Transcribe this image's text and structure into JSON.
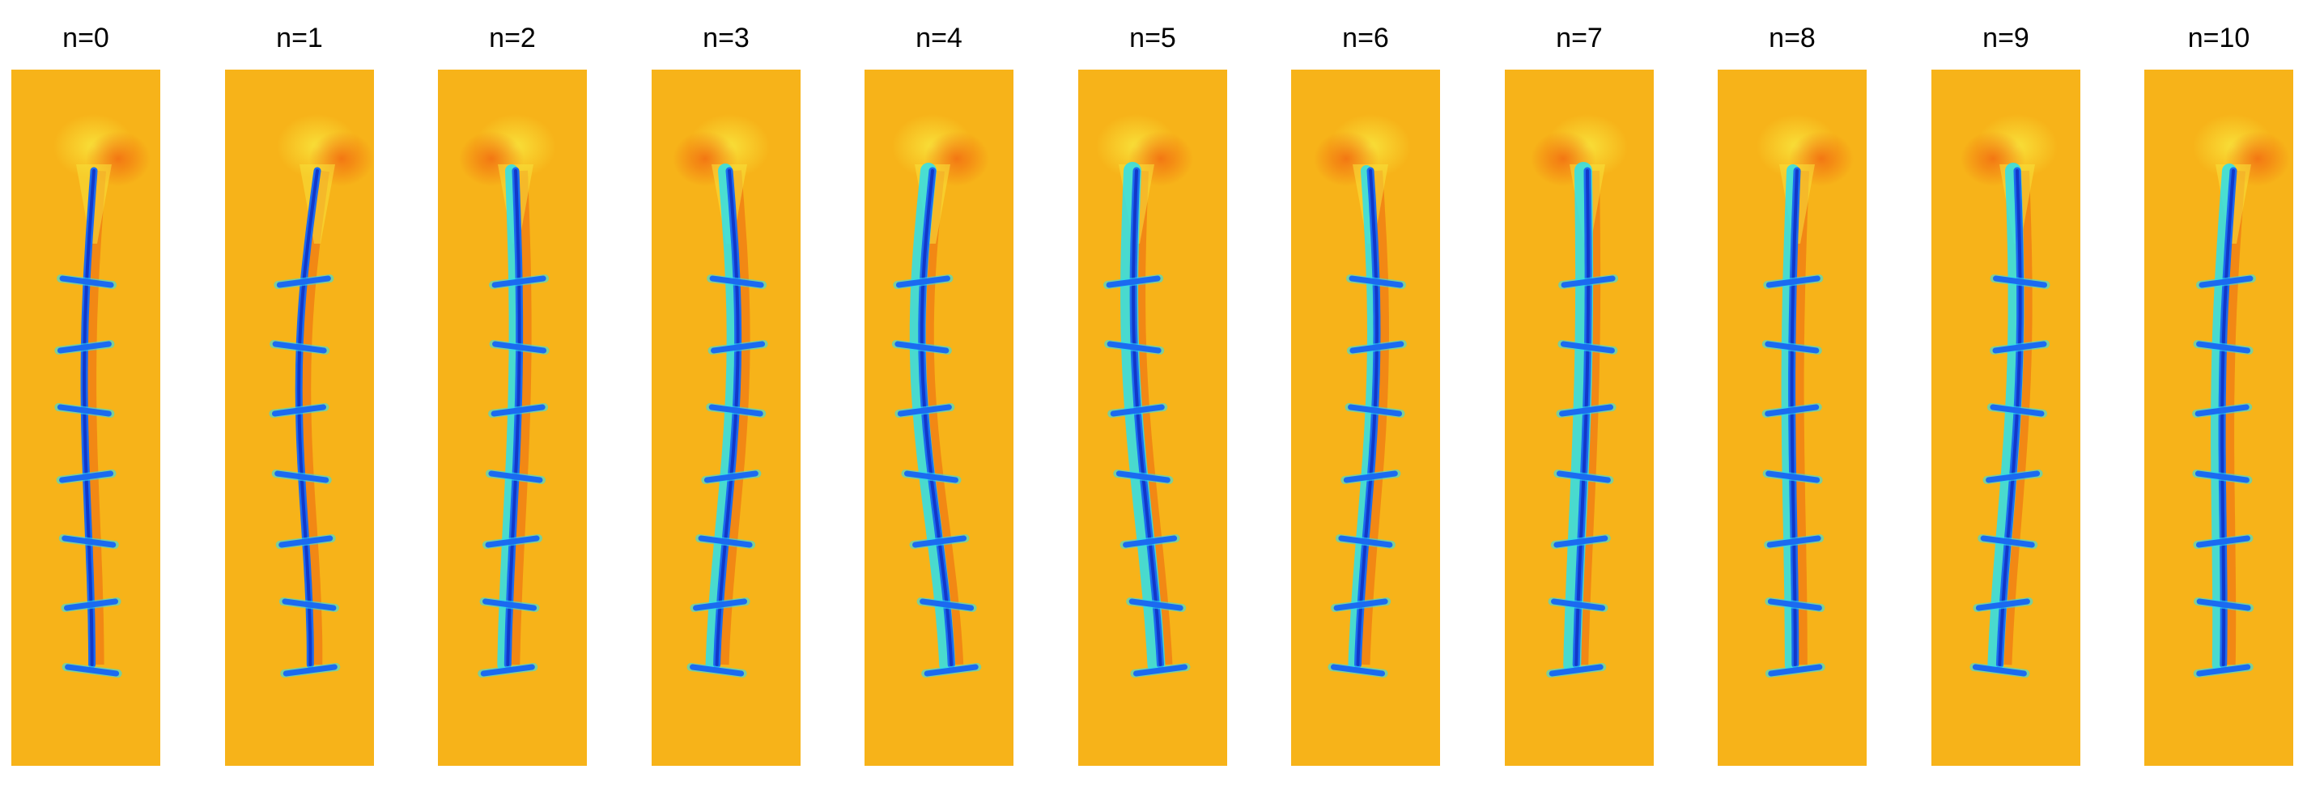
{
  "frames": [
    {
      "label": "n=0"
    },
    {
      "label": "n=1"
    },
    {
      "label": "n=2"
    },
    {
      "label": "n=3"
    },
    {
      "label": "n=4"
    },
    {
      "label": "n=5"
    },
    {
      "label": "n=6"
    },
    {
      "label": "n=7"
    },
    {
      "label": "n=8"
    },
    {
      "label": "n=9"
    },
    {
      "label": "n=10"
    }
  ],
  "colors": {
    "background_field": "#f7b319",
    "field_warm": "#f26a10",
    "field_hot": "#e83a0c",
    "field_light": "#f8e23a",
    "spine_dark": "#1238c8",
    "spine_mid": "#1b6af0",
    "spine_cyan": "#2ae0ee"
  }
}
